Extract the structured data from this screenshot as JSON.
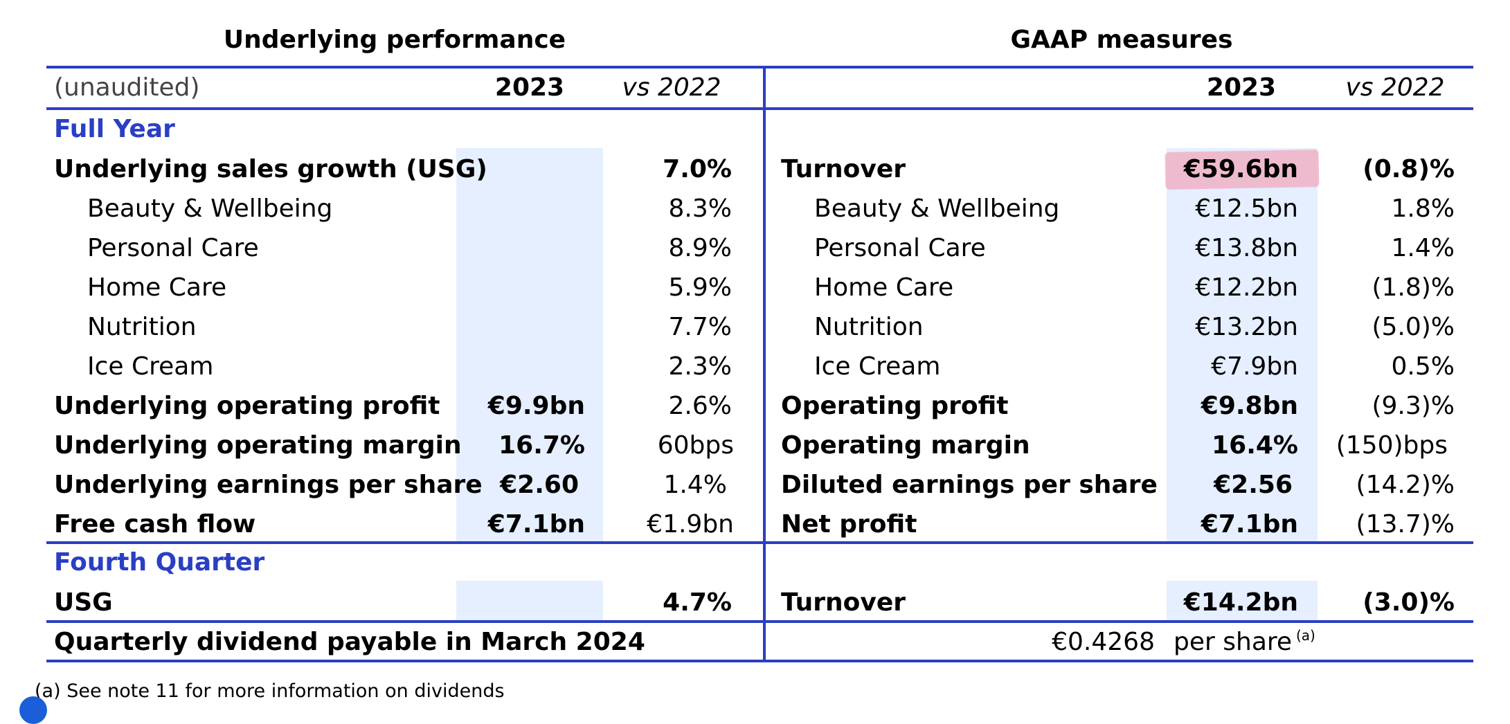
{
  "headers": {
    "left_group": "Underlying performance",
    "right_group": "GAAP measures",
    "unaudited": "(unaudited)",
    "year": "2023",
    "vs": "vs 2022"
  },
  "sections": {
    "full_year": "Full Year",
    "fourth_quarter": "Fourth Quarter"
  },
  "underlying": [
    {
      "label": "Underlying sales growth (USG)",
      "value": "",
      "vs": "7.0%"
    },
    {
      "label": "Beauty & Wellbeing",
      "value": "",
      "vs": "8.3%"
    },
    {
      "label": "Personal Care",
      "value": "",
      "vs": "8.9%"
    },
    {
      "label": "Home Care",
      "value": "",
      "vs": "5.9%"
    },
    {
      "label": "Nutrition",
      "value": "",
      "vs": "7.7%"
    },
    {
      "label": "Ice Cream",
      "value": "",
      "vs": "2.3%"
    },
    {
      "label": "Underlying operating profit",
      "value": "€9.9bn",
      "vs": "2.6%"
    },
    {
      "label": "Underlying operating margin",
      "value": "16.7%",
      "vs": "60bps"
    },
    {
      "label": "Underlying earnings per share",
      "value": "€2.60",
      "vs": "1.4%"
    },
    {
      "label": "Free cash flow",
      "value": "€7.1bn",
      "vs": "€1.9bn"
    }
  ],
  "gaap": [
    {
      "label": "Turnover",
      "value": "€59.6bn",
      "vs": "(0.8)%"
    },
    {
      "label": "Beauty & Wellbeing",
      "value": "€12.5bn",
      "vs": "1.8%"
    },
    {
      "label": "Personal Care",
      "value": "€13.8bn",
      "vs": "1.4%"
    },
    {
      "label": "Home Care",
      "value": "€12.2bn",
      "vs": "(1.8)%"
    },
    {
      "label": "Nutrition",
      "value": "€13.2bn",
      "vs": "(5.0)%"
    },
    {
      "label": "Ice Cream",
      "value": "€7.9bn",
      "vs": "0.5%"
    },
    {
      "label": "Operating profit",
      "value": "€9.8bn",
      "vs": "(9.3)%"
    },
    {
      "label": "Operating margin",
      "value": "16.4%",
      "vs": "(150)bps"
    },
    {
      "label": "Diluted earnings per share",
      "value": "€2.56",
      "vs": "(14.2)%"
    },
    {
      "label": "Net profit",
      "value": "€7.1bn",
      "vs": "(13.7)%"
    }
  ],
  "quarter": {
    "left_label": "USG",
    "left_vs": "4.7%",
    "right_label": "Turnover",
    "right_value": "€14.2bn",
    "right_vs": "(3.0)%"
  },
  "dividend": {
    "label": "Quarterly dividend payable in March 2024",
    "amount": "€0.4268",
    "unit": "per share",
    "note_marker": "(a)"
  },
  "footnote": "(a) See note 11 for more information on dividends",
  "colors": {
    "accent": "#2a3fc4",
    "shade": "#e5efff",
    "highlight": "#f0a9bd"
  }
}
